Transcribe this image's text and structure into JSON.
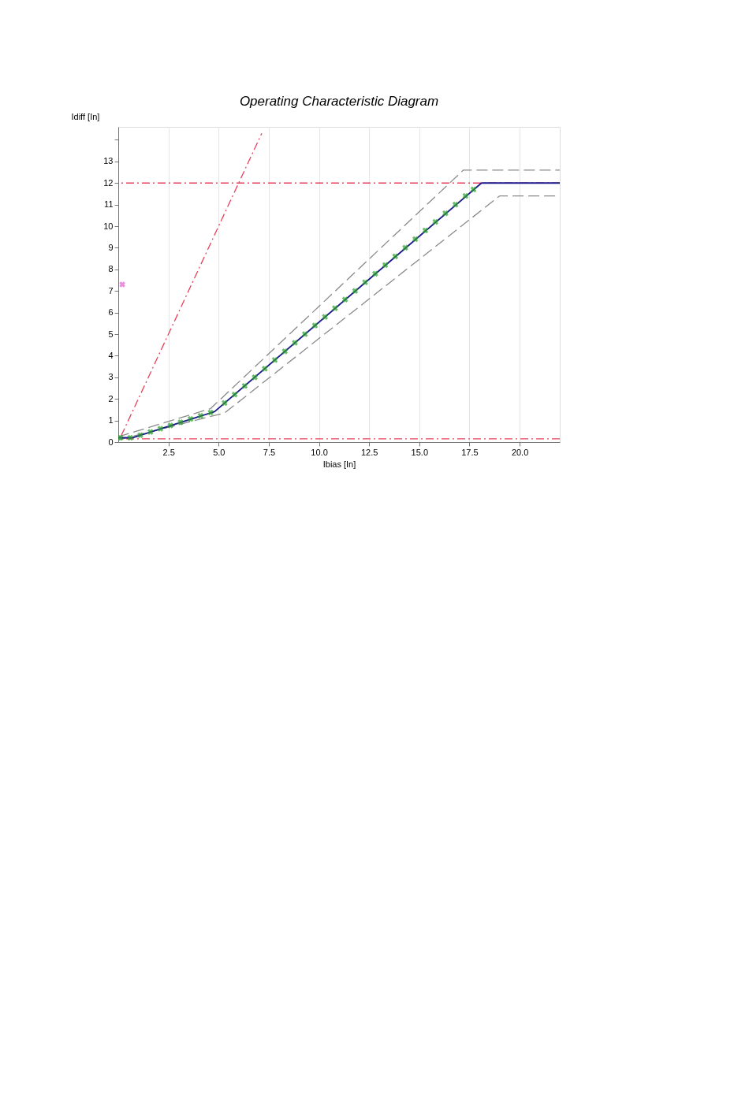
{
  "chart_data": {
    "type": "line",
    "title": "Operating Characteristic Diagram",
    "xlabel": "Ibias  [In]",
    "ylabel": "Idiff  [In]",
    "xlim": [
      0,
      22
    ],
    "xticks": [
      {
        "value": 2.5,
        "label": "2.5"
      },
      {
        "value": 5,
        "label": "5.0"
      },
      {
        "value": 7.5,
        "label": "7.5"
      },
      {
        "value": 10,
        "label": "10.0"
      },
      {
        "value": 12.5,
        "label": "12.5"
      },
      {
        "value": 15,
        "label": "15.0"
      },
      {
        "value": 17.5,
        "label": "17.5"
      },
      {
        "value": 20,
        "label": "20.0"
      }
    ],
    "ylim": [
      0,
      14.6
    ],
    "yticks": [
      0,
      1,
      2,
      3,
      4,
      5,
      6,
      7,
      8,
      9,
      10,
      11,
      12,
      13,
      {
        "value": 14,
        "label": null
      }
    ],
    "grid": "x",
    "series": [
      {
        "color": "#8a8a8a",
        "line_style": "dashed",
        "x": [
          0,
          4.6,
          17.2,
          22
        ],
        "values": [
          0.25,
          1.55,
          12.6,
          12.6
        ]
      },
      {
        "color": "#8a8a8a",
        "line_style": "dashed",
        "x": [
          0,
          5.3,
          19.0,
          22
        ],
        "values": [
          0.1,
          1.35,
          11.4,
          11.4
        ]
      },
      {
        "color": "#1a1a8c",
        "line_style": "solid",
        "x": [
          0,
          0.7,
          4.8,
          18.1,
          22
        ],
        "values": [
          0.2,
          0.2,
          1.41,
          12,
          12
        ]
      },
      {
        "color": "#e8405a",
        "line_style": "dashdot",
        "x": [
          0.15,
          7.15
        ],
        "values": [
          0.3,
          14.3
        ]
      },
      {
        "type": "scatter",
        "color": "#2aa02a",
        "marker": "cross",
        "x": [
          0.1,
          0.6,
          1.1,
          1.6,
          2.1,
          2.6,
          3.1,
          3.6,
          4.1,
          4.6,
          5.3,
          5.8,
          6.3,
          6.8,
          7.3,
          7.8,
          8.3,
          8.8,
          9.3,
          9.8,
          10.3,
          10.8,
          11.3,
          11.8,
          12.3,
          12.8,
          13.3,
          13.8,
          14.3,
          14.8,
          15.3,
          15.8,
          16.3,
          16.8,
          17.3,
          17.7
        ],
        "values": [
          0.2,
          0.2,
          0.32,
          0.47,
          0.62,
          0.77,
          0.92,
          1.07,
          1.22,
          1.37,
          1.81,
          2.2,
          2.6,
          3.0,
          3.4,
          3.8,
          4.2,
          4.6,
          5.0,
          5.4,
          5.8,
          6.2,
          6.6,
          7.0,
          7.4,
          7.8,
          8.2,
          8.6,
          9.0,
          9.4,
          9.8,
          10.2,
          10.6,
          11.0,
          11.4,
          11.7
        ]
      },
      {
        "type": "scatter",
        "color": "#e060d0",
        "marker": "cross",
        "x": [
          0.2
        ],
        "values": [
          7.3
        ]
      }
    ],
    "ref_lines": [
      {
        "axis": "y",
        "value": 12,
        "color": "#e8405a",
        "line_style": "dashdot"
      },
      {
        "axis": "y",
        "value": 0.15,
        "color": "#e8405a",
        "line_style": "dashdot"
      }
    ]
  }
}
